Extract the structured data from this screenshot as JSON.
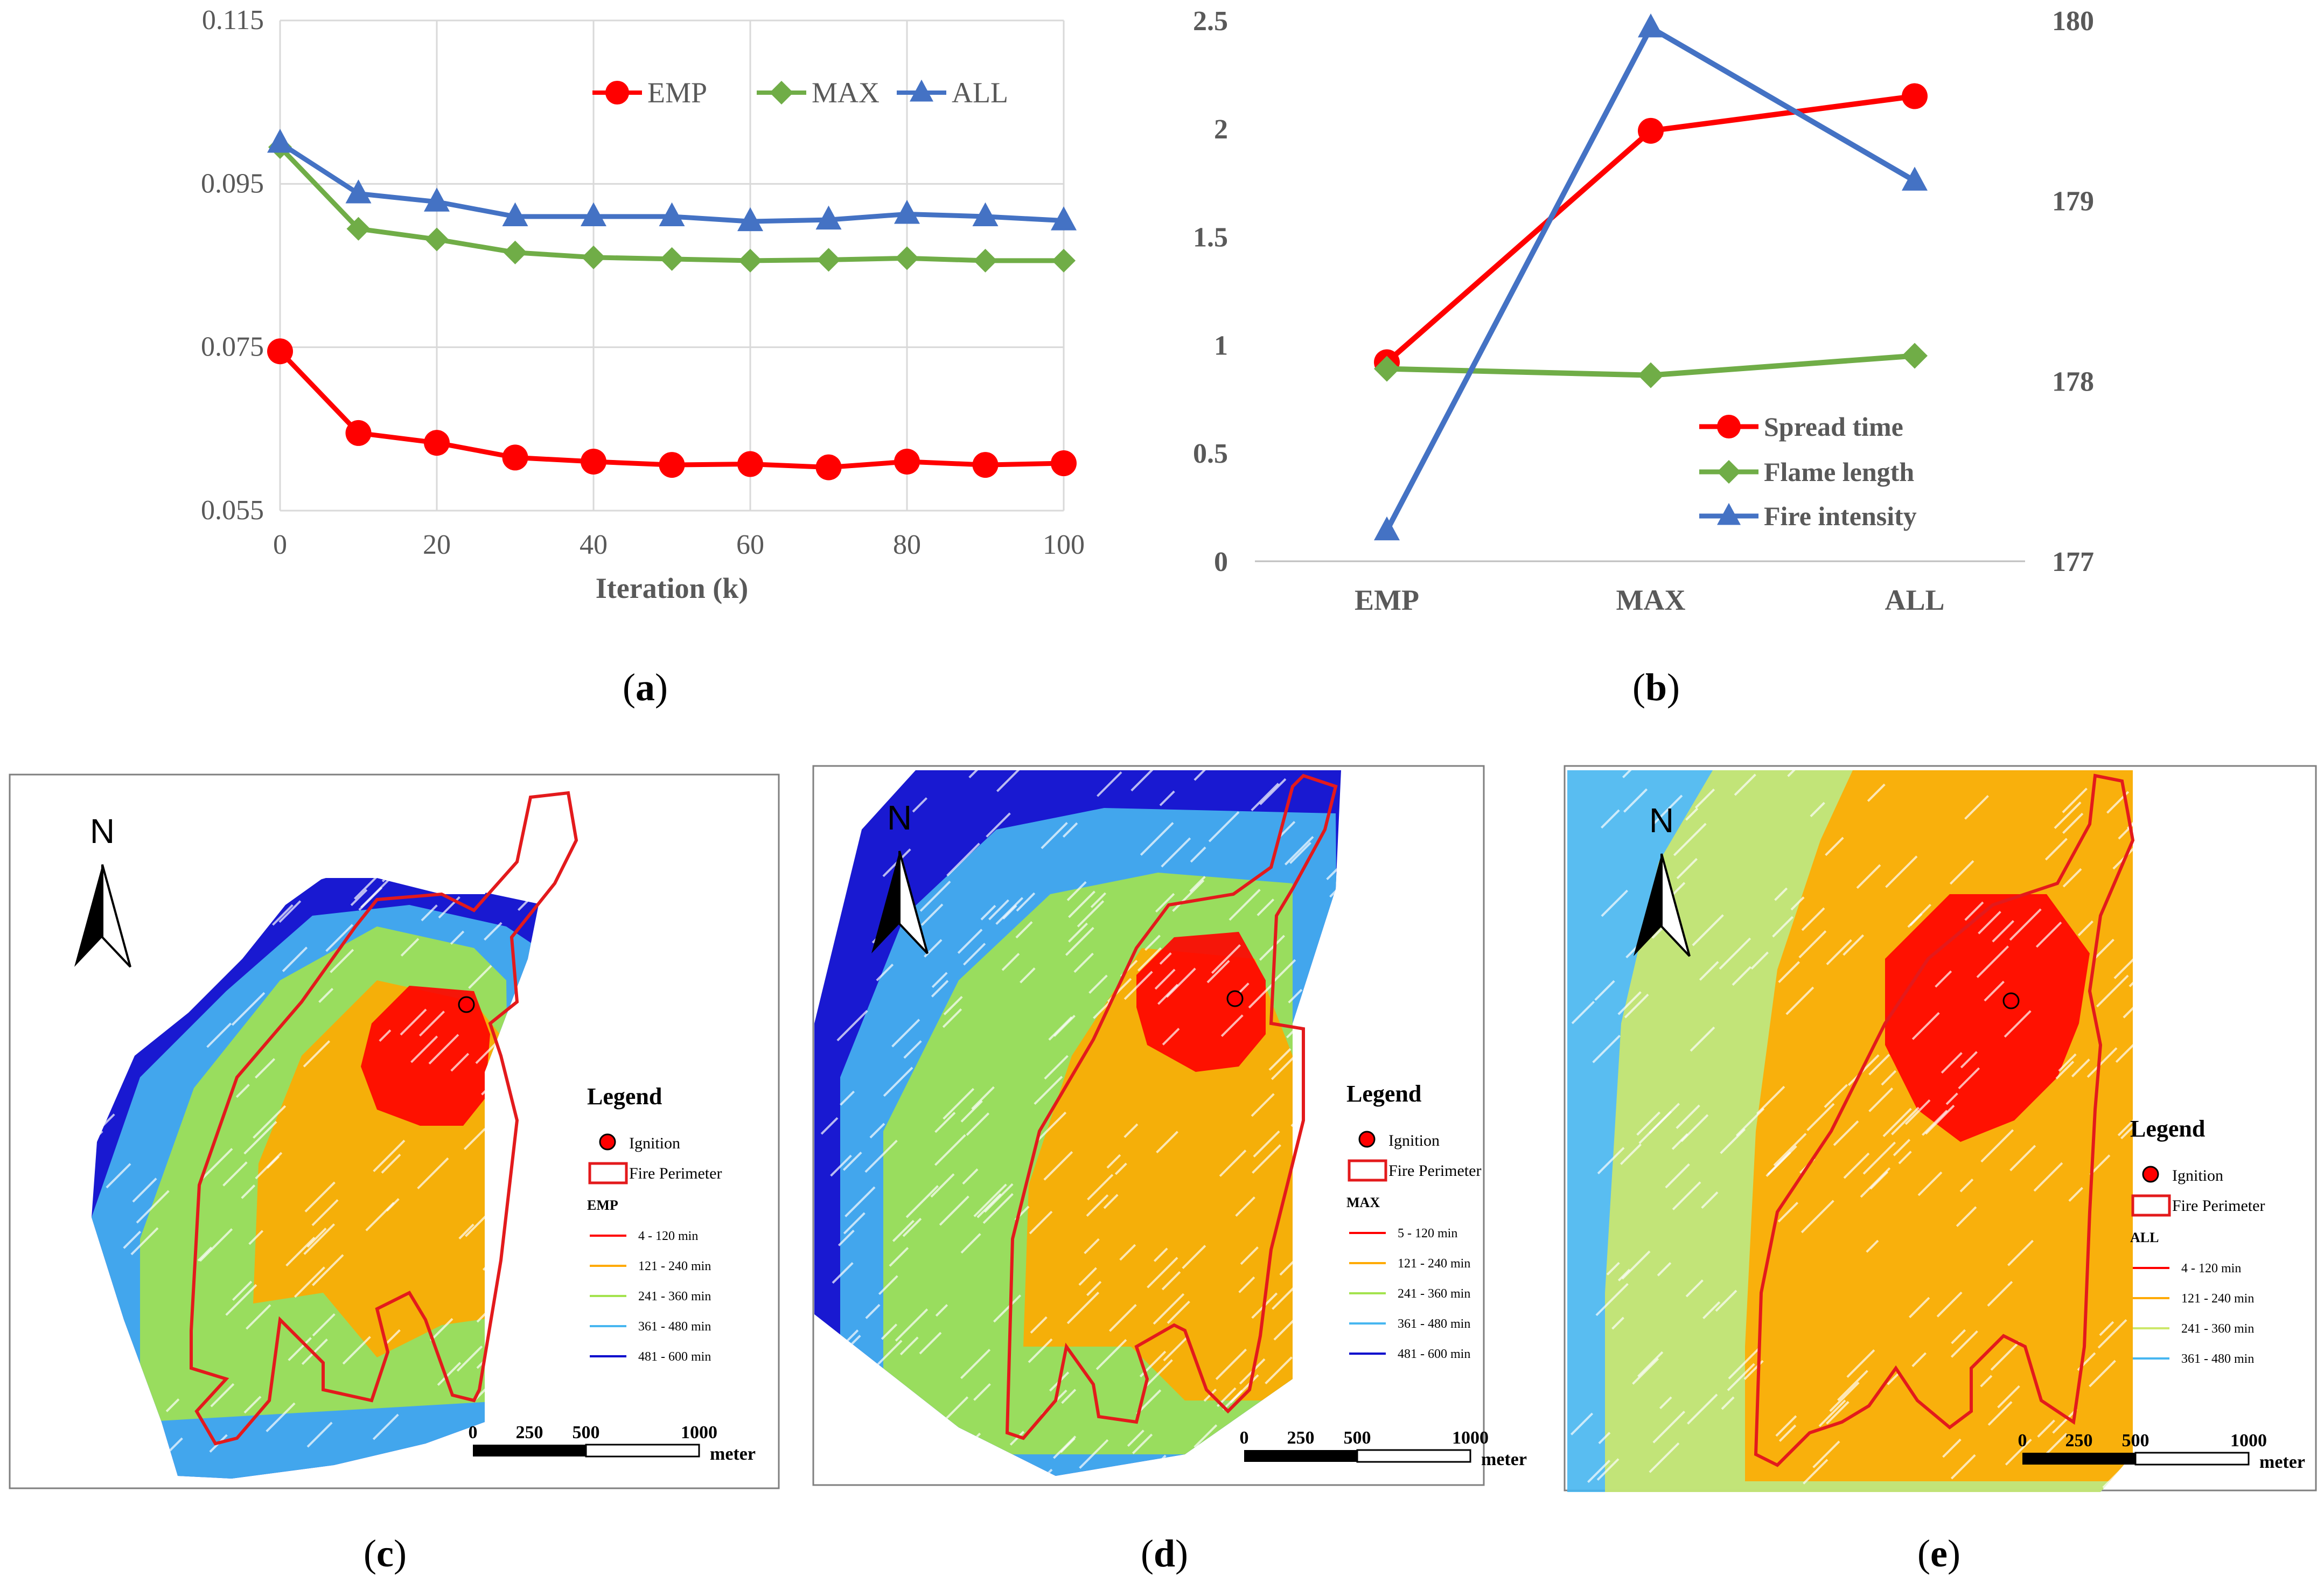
{
  "chart_data": [
    {
      "id": "a",
      "type": "line",
      "x": [
        0,
        10,
        20,
        30,
        40,
        50,
        60,
        70,
        80,
        90,
        100
      ],
      "xticks": [
        "0",
        "20",
        "40",
        "60",
        "80",
        "100"
      ],
      "xlabel": "Iteration (k)",
      "yticks": [
        "0.055",
        "0.075",
        "0.095",
        "0.115"
      ],
      "ylim": [
        0.055,
        0.115
      ],
      "xlim": [
        0,
        100
      ],
      "grid": true,
      "legend_position": "top-right",
      "series": [
        {
          "name": "EMP",
          "color": "#ff0000",
          "marker": "circle",
          "values": [
            0.0745,
            0.0645,
            0.0633,
            0.0615,
            0.061,
            0.0606,
            0.0607,
            0.0603,
            0.061,
            0.0606,
            0.0608
          ]
        },
        {
          "name": "MAX",
          "color": "#70ad47",
          "marker": "diamond",
          "values": [
            0.0995,
            0.0895,
            0.0882,
            0.0866,
            0.086,
            0.0858,
            0.0856,
            0.0857,
            0.0859,
            0.0856,
            0.0856
          ]
        },
        {
          "name": "ALL",
          "color": "#4472c4",
          "marker": "triangle",
          "values": [
            0.1,
            0.0938,
            0.0928,
            0.091,
            0.091,
            0.091,
            0.0904,
            0.0906,
            0.0913,
            0.091,
            0.0905
          ]
        }
      ],
      "caption": "a"
    },
    {
      "id": "b",
      "type": "line",
      "categories": [
        "EMP",
        "MAX",
        "ALL"
      ],
      "yticks": [
        "0",
        "0.5",
        "1",
        "1.5",
        "2",
        "2.5"
      ],
      "ylim": [
        0,
        2.5
      ],
      "y2ticks": [
        "177",
        "178",
        "179",
        "180"
      ],
      "y2lim": [
        177,
        180
      ],
      "grid": false,
      "legend_position": "bottom-right",
      "series": [
        {
          "name": "Spread time",
          "color": "#ff0000",
          "marker": "circle",
          "axis": "left",
          "values": [
            0.92,
            1.99,
            2.15
          ]
        },
        {
          "name": "Flame length",
          "color": "#70ad47",
          "marker": "diamond",
          "axis": "left",
          "values": [
            0.89,
            0.86,
            0.95
          ]
        },
        {
          "name": "Fire intensity",
          "color": "#4472c4",
          "marker": "triangle",
          "axis": "right",
          "values": [
            177.17,
            179.96,
            179.11
          ]
        }
      ],
      "caption": "b"
    }
  ],
  "maps": [
    {
      "id": "c",
      "legend_title": "Legend",
      "ignition": "Ignition",
      "perimeter": "Fire Perimeter",
      "scenario": "EMP",
      "classes": [
        {
          "label": "4 - 120 min",
          "color": "#ff0000"
        },
        {
          "label": "121 - 240 min",
          "color": "#ffaa00"
        },
        {
          "label": "241 - 360 min",
          "color": "#a3e34e"
        },
        {
          "label": "361 - 480 min",
          "color": "#47b6f0"
        },
        {
          "label": "481 - 600 min",
          "color": "#0000cc"
        }
      ],
      "scale_ticks": [
        "0",
        "250",
        "500",
        "1000"
      ],
      "scale_unit": "meter",
      "north": "N",
      "caption": "c"
    },
    {
      "id": "d",
      "legend_title": "Legend",
      "ignition": "Ignition",
      "perimeter": "Fire Perimeter",
      "scenario": "MAX",
      "classes": [
        {
          "label": "5 - 120 min",
          "color": "#ff0000"
        },
        {
          "label": "121 - 240 min",
          "color": "#ffaa00"
        },
        {
          "label": "241 - 360 min",
          "color": "#a3e34e"
        },
        {
          "label": "361 - 480 min",
          "color": "#47b6f0"
        },
        {
          "label": "481 - 600 min",
          "color": "#0000cc"
        }
      ],
      "scale_ticks": [
        "0",
        "250",
        "500",
        "1000"
      ],
      "scale_unit": "meter",
      "north": "N",
      "caption": "d"
    },
    {
      "id": "e",
      "legend_title": "Legend",
      "ignition": "Ignition",
      "perimeter": "Fire Perimeter",
      "scenario": "ALL",
      "classes": [
        {
          "label": "4 - 120 min",
          "color": "#ff0000"
        },
        {
          "label": "121 - 240 min",
          "color": "#ffaa00"
        },
        {
          "label": "241 - 360 min",
          "color": "#cde86a"
        },
        {
          "label": "361 - 480 min",
          "color": "#47b6f0"
        }
      ],
      "scale_ticks": [
        "0",
        "250",
        "500",
        "1000"
      ],
      "scale_unit": "meter",
      "north": "N",
      "caption": "e"
    }
  ]
}
